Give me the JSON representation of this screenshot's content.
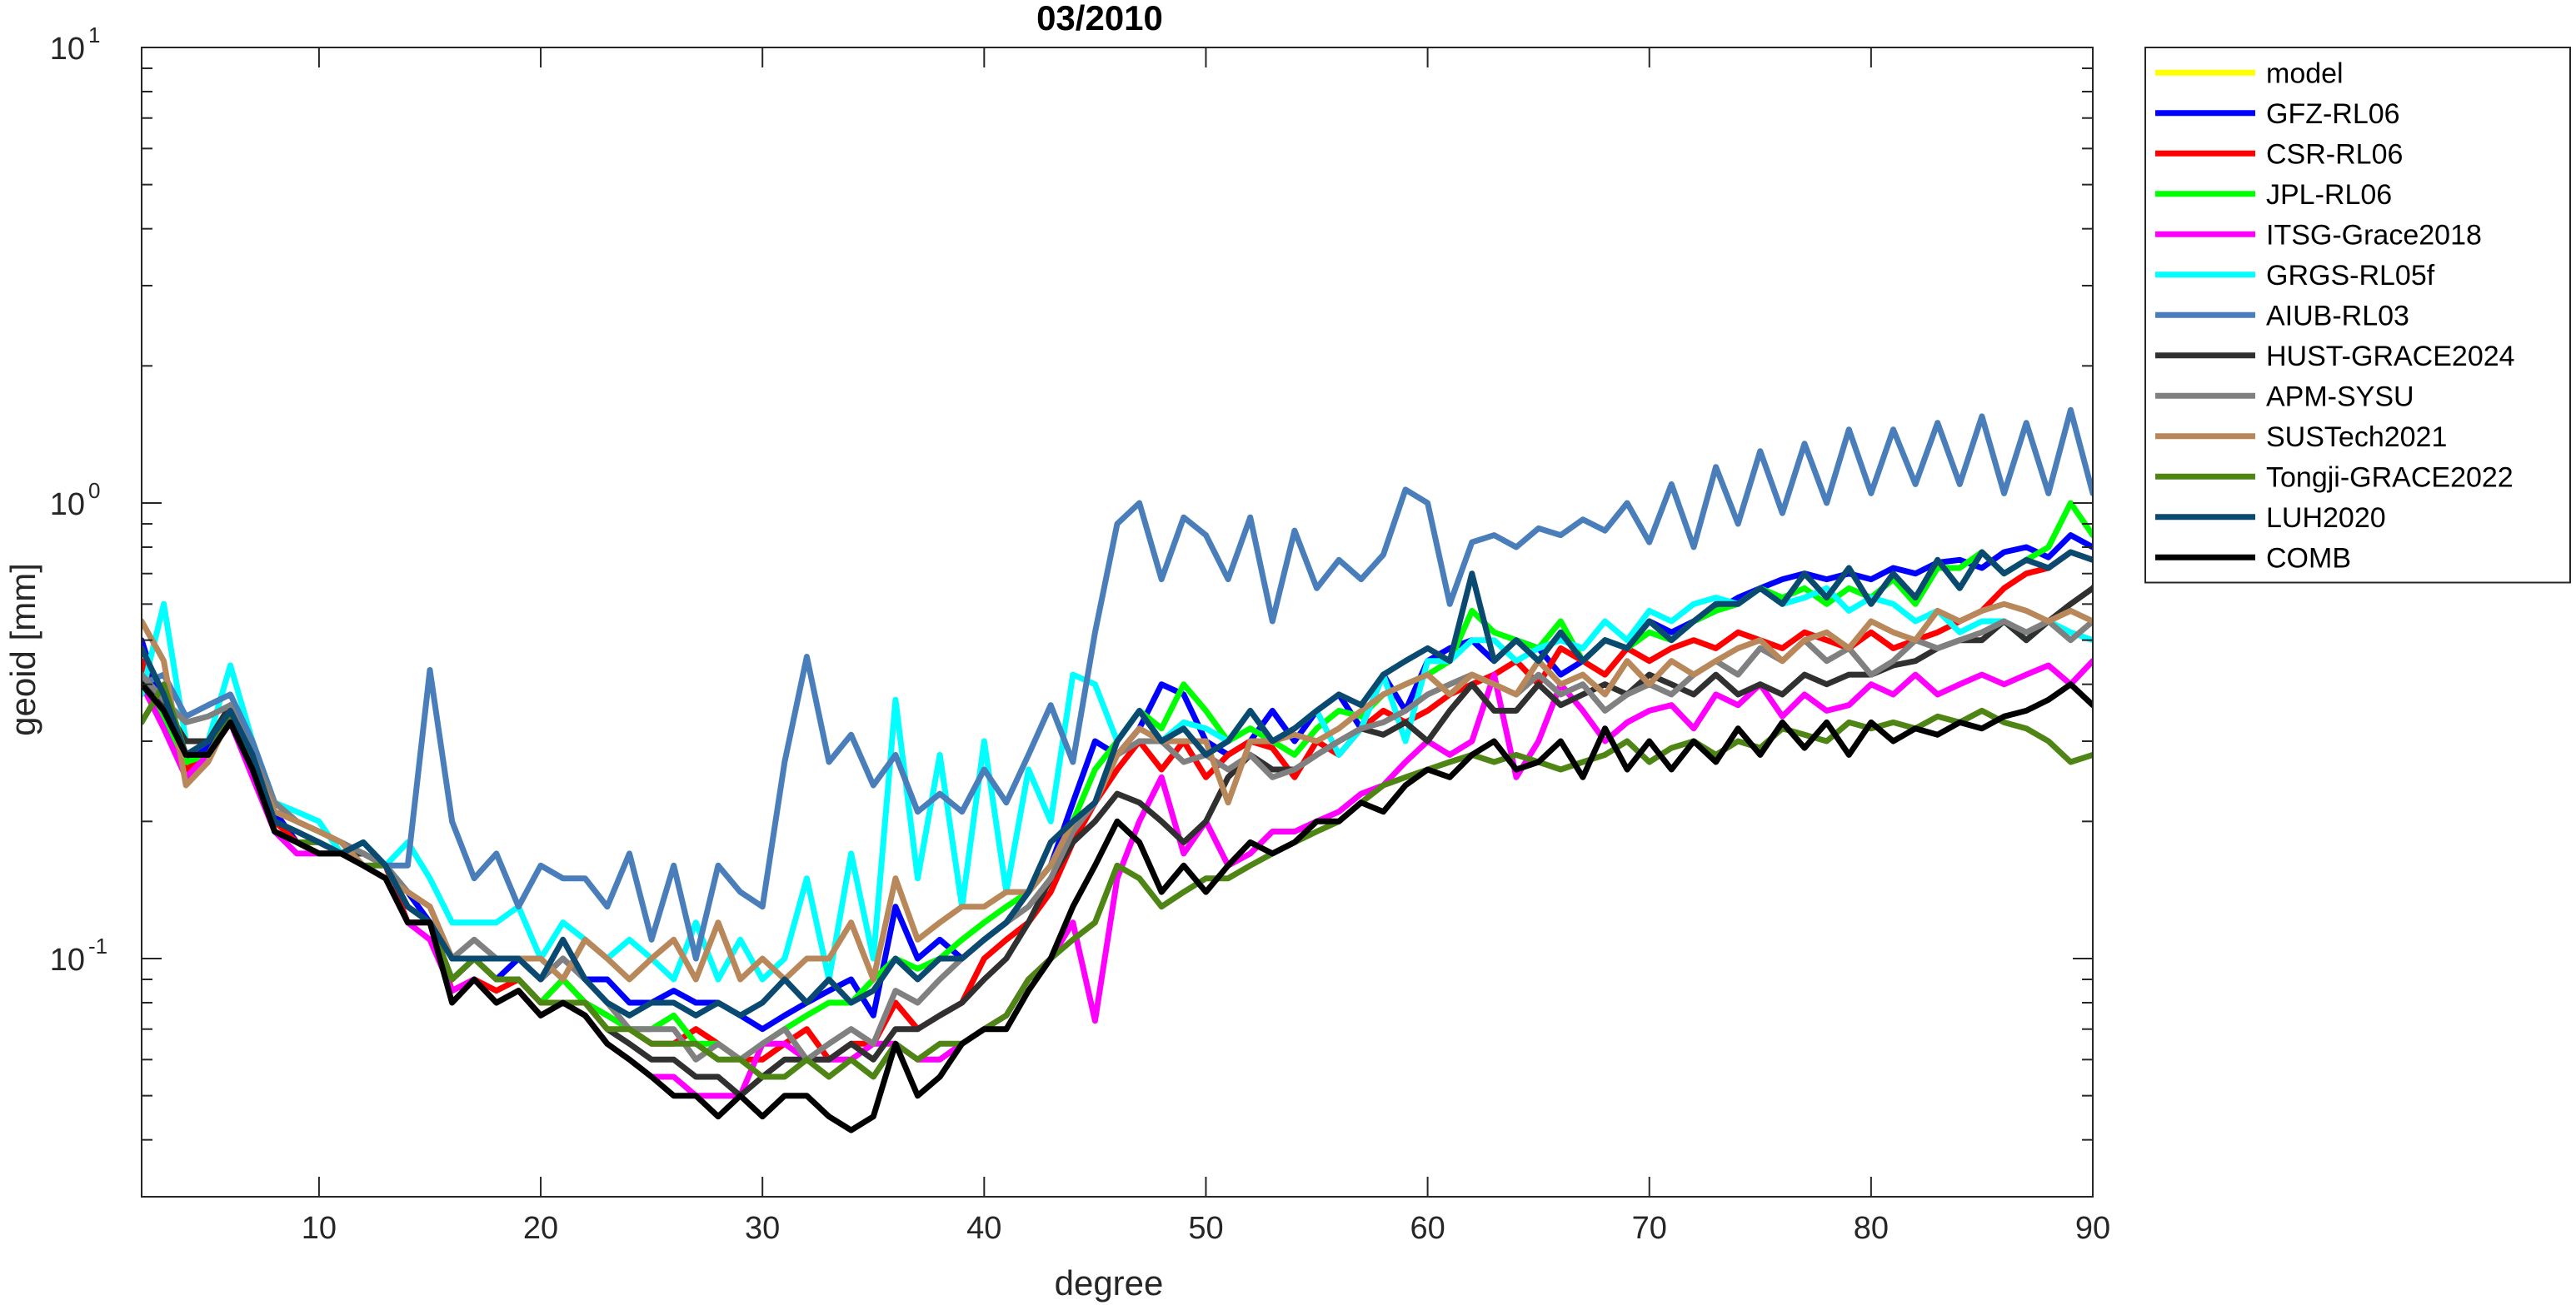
{
  "chart_data": {
    "type": "line",
    "title": "03/2010",
    "xlabel": "degree",
    "ylabel": "geoid [mm]",
    "xlim": [
      2,
      90
    ],
    "ylim": [
      0.03,
      10
    ],
    "y_scale": "log",
    "grid": false,
    "legend_position": "outside-right",
    "x_ticks": [
      10,
      20,
      30,
      40,
      50,
      60,
      70,
      80,
      90
    ],
    "y_ticks": [
      {
        "value": 0.1,
        "base": "10",
        "exp": "-1"
      },
      {
        "value": 1,
        "base": "10",
        "exp": "0"
      },
      {
        "value": 10,
        "base": "10",
        "exp": "1"
      }
    ],
    "x_start": 2,
    "series": [
      {
        "name": "model",
        "color": "#FFFF00",
        "values": []
      },
      {
        "name": "GFZ-RL06",
        "color": "#0000FF",
        "values": [
          0.5,
          0.35,
          0.27,
          0.29,
          0.35,
          0.27,
          0.21,
          0.18,
          0.17,
          0.17,
          0.17,
          0.16,
          0.14,
          0.12,
          0.09,
          0.1,
          0.09,
          0.1,
          0.09,
          0.1,
          0.09,
          0.09,
          0.08,
          0.08,
          0.085,
          0.08,
          0.08,
          0.075,
          0.07,
          0.075,
          0.08,
          0.085,
          0.09,
          0.075,
          0.13,
          0.1,
          0.11,
          0.1,
          0.11,
          0.12,
          0.14,
          0.16,
          0.22,
          0.3,
          0.28,
          0.32,
          0.4,
          0.38,
          0.3,
          0.28,
          0.3,
          0.35,
          0.3,
          0.35,
          0.38,
          0.32,
          0.42,
          0.35,
          0.45,
          0.48,
          0.5,
          0.45,
          0.5,
          0.48,
          0.42,
          0.45,
          0.5,
          0.48,
          0.55,
          0.52,
          0.55,
          0.58,
          0.62,
          0.65,
          0.68,
          0.7,
          0.68,
          0.7,
          0.68,
          0.72,
          0.7,
          0.74,
          0.75,
          0.72,
          0.78,
          0.8,
          0.76,
          0.85,
          0.8,
          0.85
        ]
      },
      {
        "name": "CSR-RL06",
        "color": "#FF0000",
        "values": [
          0.45,
          0.33,
          0.26,
          0.28,
          0.34,
          0.26,
          0.2,
          0.18,
          0.17,
          0.17,
          0.17,
          0.16,
          0.12,
          0.12,
          0.085,
          0.09,
          0.085,
          0.09,
          0.08,
          0.09,
          0.08,
          0.075,
          0.07,
          0.065,
          0.065,
          0.07,
          0.065,
          0.06,
          0.06,
          0.065,
          0.07,
          0.06,
          0.065,
          0.065,
          0.08,
          0.07,
          0.075,
          0.08,
          0.1,
          0.11,
          0.12,
          0.14,
          0.18,
          0.22,
          0.26,
          0.3,
          0.26,
          0.3,
          0.25,
          0.28,
          0.3,
          0.29,
          0.25,
          0.3,
          0.28,
          0.32,
          0.35,
          0.33,
          0.35,
          0.38,
          0.4,
          0.42,
          0.45,
          0.4,
          0.48,
          0.45,
          0.42,
          0.48,
          0.45,
          0.48,
          0.5,
          0.48,
          0.52,
          0.5,
          0.48,
          0.52,
          0.5,
          0.48,
          0.52,
          0.48,
          0.5,
          0.52,
          0.55,
          0.58,
          0.65,
          0.7,
          0.72,
          0.78,
          0.75,
          0.8
        ]
      },
      {
        "name": "JPL-RL06",
        "color": "#00FF00",
        "values": [
          0.42,
          0.34,
          0.27,
          0.28,
          0.34,
          0.27,
          0.19,
          0.18,
          0.17,
          0.17,
          0.17,
          0.16,
          0.13,
          0.12,
          0.09,
          0.1,
          0.09,
          0.09,
          0.08,
          0.09,
          0.08,
          0.075,
          0.07,
          0.07,
          0.075,
          0.065,
          0.065,
          0.06,
          0.065,
          0.07,
          0.075,
          0.08,
          0.08,
          0.09,
          0.1,
          0.095,
          0.1,
          0.11,
          0.12,
          0.13,
          0.14,
          0.16,
          0.2,
          0.26,
          0.3,
          0.35,
          0.32,
          0.4,
          0.35,
          0.3,
          0.32,
          0.3,
          0.28,
          0.32,
          0.35,
          0.34,
          0.38,
          0.4,
          0.42,
          0.45,
          0.58,
          0.52,
          0.5,
          0.48,
          0.55,
          0.45,
          0.5,
          0.48,
          0.52,
          0.5,
          0.55,
          0.58,
          0.6,
          0.65,
          0.62,
          0.65,
          0.6,
          0.65,
          0.62,
          0.68,
          0.6,
          0.72,
          0.72,
          0.78,
          0.7,
          0.75,
          0.8,
          1.0,
          0.85,
          0.9
        ]
      },
      {
        "name": "ITSG-Grace2018",
        "color": "#FF00FF",
        "values": [
          0.4,
          0.32,
          0.25,
          0.28,
          0.33,
          0.25,
          0.19,
          0.17,
          0.17,
          0.17,
          0.16,
          0.15,
          0.12,
          0.11,
          0.085,
          0.09,
          0.08,
          0.085,
          0.075,
          0.08,
          0.075,
          0.065,
          0.06,
          0.055,
          0.055,
          0.05,
          0.05,
          0.05,
          0.065,
          0.065,
          0.06,
          0.06,
          0.06,
          0.065,
          0.065,
          0.06,
          0.06,
          0.065,
          0.07,
          0.075,
          0.09,
          0.1,
          0.12,
          0.073,
          0.15,
          0.2,
          0.25,
          0.17,
          0.2,
          0.16,
          0.17,
          0.19,
          0.19,
          0.2,
          0.21,
          0.23,
          0.24,
          0.27,
          0.3,
          0.28,
          0.3,
          0.42,
          0.25,
          0.3,
          0.4,
          0.35,
          0.3,
          0.33,
          0.35,
          0.36,
          0.32,
          0.38,
          0.36,
          0.4,
          0.34,
          0.38,
          0.35,
          0.36,
          0.4,
          0.38,
          0.42,
          0.38,
          0.4,
          0.42,
          0.4,
          0.42,
          0.44,
          0.4,
          0.45,
          0.48
        ]
      },
      {
        "name": "GRGS-RL05f",
        "color": "#00FFFF",
        "values": [
          0.38,
          0.6,
          0.3,
          0.3,
          0.44,
          0.3,
          0.22,
          0.21,
          0.2,
          0.17,
          0.18,
          0.16,
          0.18,
          0.15,
          0.12,
          0.12,
          0.12,
          0.13,
          0.1,
          0.12,
          0.11,
          0.1,
          0.11,
          0.1,
          0.09,
          0.12,
          0.09,
          0.11,
          0.09,
          0.1,
          0.15,
          0.09,
          0.17,
          0.1,
          0.37,
          0.15,
          0.28,
          0.13,
          0.3,
          0.14,
          0.26,
          0.2,
          0.42,
          0.4,
          0.3,
          0.35,
          0.3,
          0.33,
          0.32,
          0.3,
          0.35,
          0.3,
          0.32,
          0.35,
          0.28,
          0.32,
          0.42,
          0.3,
          0.45,
          0.45,
          0.5,
          0.5,
          0.45,
          0.48,
          0.5,
          0.48,
          0.55,
          0.5,
          0.58,
          0.55,
          0.6,
          0.62,
          0.6,
          0.65,
          0.6,
          0.62,
          0.65,
          0.58,
          0.62,
          0.6,
          0.55,
          0.58,
          0.52,
          0.55,
          0.55,
          0.5,
          0.55,
          0.52,
          0.5,
          0.55
        ]
      },
      {
        "name": "AIUB-RL03",
        "color": "#4A7EBB",
        "values": [
          0.4,
          0.42,
          0.34,
          0.36,
          0.38,
          0.3,
          0.22,
          0.2,
          0.19,
          0.18,
          0.17,
          0.16,
          0.16,
          0.43,
          0.2,
          0.15,
          0.17,
          0.13,
          0.16,
          0.15,
          0.15,
          0.13,
          0.17,
          0.11,
          0.16,
          0.1,
          0.16,
          0.14,
          0.13,
          0.27,
          0.46,
          0.27,
          0.31,
          0.24,
          0.28,
          0.21,
          0.23,
          0.21,
          0.26,
          0.22,
          0.28,
          0.36,
          0.27,
          0.52,
          0.9,
          1.0,
          0.68,
          0.93,
          0.85,
          0.68,
          0.93,
          0.55,
          0.87,
          0.65,
          0.75,
          0.68,
          0.77,
          1.07,
          1.0,
          0.6,
          0.82,
          0.85,
          0.8,
          0.88,
          0.85,
          0.92,
          0.87,
          1.0,
          0.82,
          1.1,
          0.8,
          1.2,
          0.9,
          1.3,
          0.95,
          1.35,
          1.0,
          1.45,
          1.05,
          1.45,
          1.1,
          1.5,
          1.1,
          1.55,
          1.05,
          1.5,
          1.05,
          1.6,
          1.05,
          1.35
        ]
      },
      {
        "name": "HUST-GRACE2024",
        "color": "#303030",
        "values": [
          0.42,
          0.36,
          0.3,
          0.3,
          0.36,
          0.28,
          0.2,
          0.19,
          0.18,
          0.17,
          0.17,
          0.16,
          0.13,
          0.12,
          0.09,
          0.1,
          0.09,
          0.09,
          0.08,
          0.08,
          0.08,
          0.07,
          0.065,
          0.06,
          0.06,
          0.055,
          0.055,
          0.05,
          0.055,
          0.06,
          0.06,
          0.06,
          0.065,
          0.06,
          0.07,
          0.07,
          0.075,
          0.08,
          0.09,
          0.1,
          0.12,
          0.15,
          0.18,
          0.2,
          0.23,
          0.22,
          0.2,
          0.18,
          0.2,
          0.25,
          0.28,
          0.26,
          0.26,
          0.28,
          0.3,
          0.32,
          0.31,
          0.33,
          0.3,
          0.35,
          0.4,
          0.35,
          0.35,
          0.4,
          0.36,
          0.38,
          0.4,
          0.38,
          0.42,
          0.4,
          0.38,
          0.42,
          0.38,
          0.4,
          0.38,
          0.42,
          0.4,
          0.42,
          0.42,
          0.44,
          0.45,
          0.48,
          0.5,
          0.5,
          0.55,
          0.5,
          0.55,
          0.6,
          0.65,
          0.75
        ]
      },
      {
        "name": "APM-SYSU",
        "color": "#808080",
        "values": [
          0.42,
          0.37,
          0.33,
          0.34,
          0.36,
          0.28,
          0.22,
          0.2,
          0.19,
          0.18,
          0.17,
          0.16,
          0.14,
          0.13,
          0.1,
          0.11,
          0.1,
          0.1,
          0.09,
          0.1,
          0.09,
          0.08,
          0.07,
          0.07,
          0.07,
          0.06,
          0.065,
          0.06,
          0.065,
          0.07,
          0.06,
          0.065,
          0.07,
          0.065,
          0.085,
          0.08,
          0.09,
          0.1,
          0.11,
          0.12,
          0.13,
          0.15,
          0.19,
          0.22,
          0.28,
          0.3,
          0.3,
          0.27,
          0.28,
          0.26,
          0.28,
          0.25,
          0.26,
          0.28,
          0.3,
          0.32,
          0.33,
          0.35,
          0.38,
          0.4,
          0.42,
          0.4,
          0.38,
          0.42,
          0.38,
          0.4,
          0.35,
          0.38,
          0.4,
          0.38,
          0.42,
          0.45,
          0.42,
          0.48,
          0.45,
          0.5,
          0.45,
          0.48,
          0.42,
          0.45,
          0.5,
          0.48,
          0.5,
          0.52,
          0.55,
          0.52,
          0.55,
          0.5,
          0.55,
          0.52
        ]
      },
      {
        "name": "SUSTech2021",
        "color": "#B8875A",
        "values": [
          0.55,
          0.45,
          0.24,
          0.27,
          0.34,
          0.27,
          0.21,
          0.2,
          0.19,
          0.18,
          0.16,
          0.15,
          0.14,
          0.13,
          0.1,
          0.1,
          0.1,
          0.1,
          0.1,
          0.09,
          0.11,
          0.1,
          0.09,
          0.1,
          0.11,
          0.09,
          0.12,
          0.09,
          0.1,
          0.09,
          0.1,
          0.1,
          0.12,
          0.09,
          0.15,
          0.11,
          0.12,
          0.13,
          0.13,
          0.14,
          0.14,
          0.16,
          0.2,
          0.22,
          0.28,
          0.32,
          0.3,
          0.3,
          0.3,
          0.22,
          0.3,
          0.3,
          0.31,
          0.3,
          0.32,
          0.35,
          0.38,
          0.4,
          0.42,
          0.38,
          0.42,
          0.4,
          0.38,
          0.45,
          0.4,
          0.42,
          0.38,
          0.45,
          0.4,
          0.45,
          0.42,
          0.45,
          0.48,
          0.5,
          0.45,
          0.5,
          0.52,
          0.48,
          0.55,
          0.52,
          0.5,
          0.58,
          0.55,
          0.58,
          0.6,
          0.58,
          0.55,
          0.58,
          0.55,
          0.55
        ]
      },
      {
        "name": "Tongji-GRACE2022",
        "color": "#4E8515",
        "values": [
          0.33,
          0.4,
          0.28,
          0.28,
          0.34,
          0.27,
          0.19,
          0.18,
          0.18,
          0.17,
          0.16,
          0.16,
          0.13,
          0.12,
          0.09,
          0.1,
          0.09,
          0.09,
          0.08,
          0.08,
          0.08,
          0.07,
          0.07,
          0.065,
          0.065,
          0.065,
          0.06,
          0.06,
          0.055,
          0.055,
          0.06,
          0.055,
          0.06,
          0.055,
          0.065,
          0.06,
          0.065,
          0.065,
          0.07,
          0.075,
          0.09,
          0.1,
          0.11,
          0.12,
          0.16,
          0.15,
          0.13,
          0.14,
          0.15,
          0.15,
          0.16,
          0.17,
          0.18,
          0.19,
          0.2,
          0.22,
          0.24,
          0.25,
          0.26,
          0.27,
          0.28,
          0.27,
          0.28,
          0.27,
          0.26,
          0.27,
          0.28,
          0.3,
          0.27,
          0.29,
          0.3,
          0.28,
          0.3,
          0.29,
          0.32,
          0.31,
          0.3,
          0.33,
          0.32,
          0.33,
          0.32,
          0.34,
          0.33,
          0.35,
          0.33,
          0.32,
          0.3,
          0.27,
          0.28,
          0.3
        ]
      },
      {
        "name": "LUH2020",
        "color": "#0A4A70",
        "values": [
          0.48,
          0.38,
          0.28,
          0.3,
          0.35,
          0.28,
          0.2,
          0.19,
          0.18,
          0.17,
          0.18,
          0.16,
          0.13,
          0.12,
          0.1,
          0.1,
          0.1,
          0.1,
          0.09,
          0.11,
          0.09,
          0.08,
          0.075,
          0.08,
          0.08,
          0.075,
          0.08,
          0.075,
          0.08,
          0.09,
          0.08,
          0.09,
          0.08,
          0.085,
          0.1,
          0.09,
          0.1,
          0.1,
          0.11,
          0.12,
          0.14,
          0.18,
          0.2,
          0.22,
          0.3,
          0.35,
          0.3,
          0.32,
          0.28,
          0.3,
          0.35,
          0.3,
          0.32,
          0.35,
          0.38,
          0.36,
          0.42,
          0.45,
          0.48,
          0.45,
          0.7,
          0.45,
          0.5,
          0.45,
          0.52,
          0.45,
          0.5,
          0.48,
          0.55,
          0.5,
          0.55,
          0.6,
          0.6,
          0.65,
          0.6,
          0.7,
          0.62,
          0.72,
          0.6,
          0.7,
          0.62,
          0.75,
          0.65,
          0.78,
          0.7,
          0.75,
          0.72,
          0.78,
          0.75,
          0.8
        ]
      },
      {
        "name": "COMB",
        "color": "#000000",
        "values": [
          0.4,
          0.35,
          0.28,
          0.28,
          0.33,
          0.26,
          0.19,
          0.18,
          0.17,
          0.17,
          0.16,
          0.15,
          0.12,
          0.12,
          0.08,
          0.09,
          0.08,
          0.085,
          0.075,
          0.08,
          0.075,
          0.065,
          0.06,
          0.055,
          0.05,
          0.05,
          0.045,
          0.05,
          0.045,
          0.05,
          0.05,
          0.045,
          0.042,
          0.045,
          0.065,
          0.05,
          0.055,
          0.065,
          0.07,
          0.07,
          0.085,
          0.1,
          0.13,
          0.16,
          0.2,
          0.18,
          0.14,
          0.16,
          0.14,
          0.16,
          0.18,
          0.17,
          0.18,
          0.2,
          0.2,
          0.22,
          0.21,
          0.24,
          0.26,
          0.25,
          0.28,
          0.3,
          0.26,
          0.27,
          0.3,
          0.25,
          0.32,
          0.26,
          0.3,
          0.26,
          0.3,
          0.27,
          0.32,
          0.28,
          0.33,
          0.29,
          0.33,
          0.28,
          0.33,
          0.3,
          0.32,
          0.31,
          0.33,
          0.32,
          0.34,
          0.35,
          0.37,
          0.4,
          0.36,
          0.42
        ]
      }
    ]
  }
}
